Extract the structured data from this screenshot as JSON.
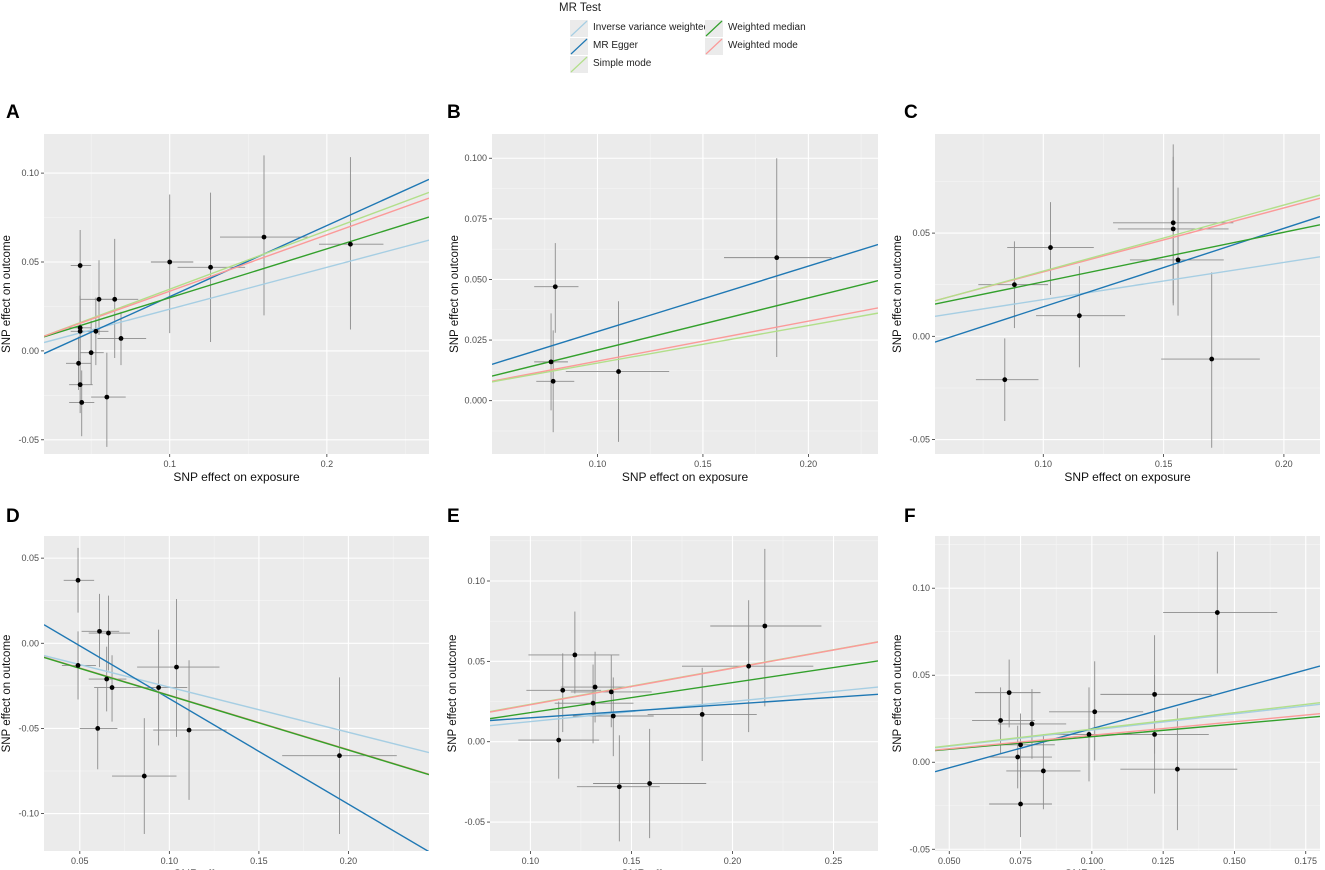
{
  "legend": {
    "title": "MR Test",
    "items": [
      {
        "name": "Inverse variance weighted",
        "color": "#a6cee3"
      },
      {
        "name": "Weighted median",
        "color": "#33a02c"
      },
      {
        "name": "MR Egger",
        "color": "#1f78b4"
      },
      {
        "name": "Weighted mode",
        "color": "#fb9a99"
      },
      {
        "name": "Simple mode",
        "color": "#b2df8a"
      }
    ]
  },
  "chart_data": [
    {
      "id": "A",
      "label": "A",
      "type": "scatter",
      "xlabel": "SNP effect on exposure",
      "ylabel": "SNP effect on outcome",
      "xlim": [
        0.02,
        0.265
      ],
      "ylim": [
        -0.058,
        0.122
      ],
      "xticks": [
        0.1,
        0.2
      ],
      "xticklabels": [
        "0.1",
        "0.2"
      ],
      "yticks": [
        -0.05,
        0.0,
        0.05,
        0.1
      ],
      "yticklabels": [
        "-0.05",
        "0.00",
        "0.05",
        "0.10"
      ],
      "points": [
        {
          "x": 0.043,
          "y": 0.048,
          "xlo": 0.037,
          "xhi": 0.05,
          "ylo": 0.028,
          "yhi": 0.068
        },
        {
          "x": 0.043,
          "y": 0.013,
          "xlo": 0.036,
          "xhi": 0.05,
          "ylo": -0.005,
          "yhi": 0.031
        },
        {
          "x": 0.043,
          "y": 0.011,
          "xlo": 0.037,
          "xhi": 0.049,
          "ylo": -0.006,
          "yhi": 0.028
        },
        {
          "x": 0.042,
          "y": -0.007,
          "xlo": 0.034,
          "xhi": 0.05,
          "ylo": -0.022,
          "yhi": 0.008
        },
        {
          "x": 0.043,
          "y": -0.019,
          "xlo": 0.036,
          "xhi": 0.051,
          "ylo": -0.035,
          "yhi": -0.004
        },
        {
          "x": 0.044,
          "y": -0.029,
          "xlo": 0.036,
          "xhi": 0.052,
          "ylo": -0.048,
          "yhi": -0.011
        },
        {
          "x": 0.05,
          "y": -0.001,
          "xlo": 0.043,
          "xhi": 0.058,
          "ylo": -0.019,
          "yhi": 0.017
        },
        {
          "x": 0.053,
          "y": 0.011,
          "xlo": 0.045,
          "xhi": 0.061,
          "ylo": -0.008,
          "yhi": 0.03
        },
        {
          "x": 0.055,
          "y": 0.029,
          "xlo": 0.043,
          "xhi": 0.066,
          "ylo": 0.009,
          "yhi": 0.051
        },
        {
          "x": 0.06,
          "y": -0.026,
          "xlo": 0.05,
          "xhi": 0.072,
          "ylo": -0.054,
          "yhi": -0.001
        },
        {
          "x": 0.065,
          "y": 0.029,
          "xlo": 0.052,
          "xhi": 0.08,
          "ylo": -0.004,
          "yhi": 0.063
        },
        {
          "x": 0.069,
          "y": 0.007,
          "xlo": 0.054,
          "xhi": 0.085,
          "ylo": -0.008,
          "yhi": 0.022
        },
        {
          "x": 0.1,
          "y": 0.05,
          "xlo": 0.088,
          "xhi": 0.115,
          "ylo": 0.01,
          "yhi": 0.088
        },
        {
          "x": 0.126,
          "y": 0.047,
          "xlo": 0.105,
          "xhi": 0.148,
          "ylo": 0.005,
          "yhi": 0.089
        },
        {
          "x": 0.16,
          "y": 0.064,
          "xlo": 0.132,
          "xhi": 0.188,
          "ylo": 0.02,
          "yhi": 0.11
        },
        {
          "x": 0.215,
          "y": 0.06,
          "xlo": 0.195,
          "xhi": 0.236,
          "ylo": 0.012,
          "yhi": 0.109
        }
      ],
      "lines": [
        {
          "method": "Inverse variance weighted",
          "slope": 0.235,
          "intercept": 0.0
        },
        {
          "method": "MR Egger",
          "slope": 0.4,
          "intercept": -0.0095
        },
        {
          "method": "Simple mode",
          "slope": 0.33,
          "intercept": 0.0017
        },
        {
          "method": "Weighted median",
          "slope": 0.275,
          "intercept": 0.0024
        },
        {
          "method": "Weighted mode",
          "slope": 0.317,
          "intercept": 0.0019
        }
      ]
    },
    {
      "id": "B",
      "label": "B",
      "type": "scatter",
      "xlabel": "SNP effect on exposure",
      "ylabel": "SNP effect on outcome",
      "xlim": [
        0.05,
        0.233
      ],
      "ylim": [
        -0.022,
        0.11
      ],
      "xticks": [
        0.1,
        0.15,
        0.2
      ],
      "xticklabels": [
        "0.10",
        "0.15",
        "0.20"
      ],
      "yticks": [
        0.0,
        0.025,
        0.05,
        0.075,
        0.1
      ],
      "yticklabels": [
        "0.000",
        "0.025",
        "0.050",
        "0.075",
        "0.100"
      ],
      "points": [
        {
          "x": 0.08,
          "y": 0.047,
          "xlo": 0.07,
          "xhi": 0.091,
          "ylo": 0.028,
          "yhi": 0.065
        },
        {
          "x": 0.078,
          "y": 0.016,
          "xlo": 0.07,
          "xhi": 0.086,
          "ylo": -0.004,
          "yhi": 0.036
        },
        {
          "x": 0.079,
          "y": 0.008,
          "xlo": 0.071,
          "xhi": 0.089,
          "ylo": -0.013,
          "yhi": 0.029
        },
        {
          "x": 0.11,
          "y": 0.012,
          "xlo": 0.085,
          "xhi": 0.134,
          "ylo": -0.017,
          "yhi": 0.041
        },
        {
          "x": 0.185,
          "y": 0.059,
          "xlo": 0.16,
          "xhi": 0.211,
          "ylo": 0.018,
          "yhi": 0.1
        }
      ],
      "lines": [
        {
          "method": "MR Egger",
          "slope": 0.27,
          "intercept": 0.0015
        },
        {
          "method": "Weighted median",
          "slope": 0.215,
          "intercept": -0.0006
        },
        {
          "method": "Weighted mode",
          "slope": 0.165,
          "intercept": -0.0002
        },
        {
          "method": "Simple mode",
          "slope": 0.155,
          "intercept": 0.0
        }
      ]
    },
    {
      "id": "C",
      "label": "C",
      "type": "scatter",
      "xlabel": "SNP effect on exposure",
      "ylabel": "SNP effect on outcome",
      "xlim": [
        0.055,
        0.215
      ],
      "ylim": [
        -0.057,
        0.098
      ],
      "xticks": [
        0.1,
        0.15,
        0.2
      ],
      "xticklabels": [
        "0.10",
        "0.15",
        "0.20"
      ],
      "yticks": [
        -0.05,
        0.0,
        0.05
      ],
      "yticklabels": [
        "-0.05",
        "0.00",
        "0.05"
      ],
      "points": [
        {
          "x": 0.084,
          "y": -0.021,
          "xlo": 0.072,
          "xhi": 0.098,
          "ylo": -0.041,
          "yhi": -0.001
        },
        {
          "x": 0.088,
          "y": 0.025,
          "xlo": 0.073,
          "xhi": 0.102,
          "ylo": 0.004,
          "yhi": 0.046
        },
        {
          "x": 0.103,
          "y": 0.043,
          "xlo": 0.085,
          "xhi": 0.121,
          "ylo": 0.02,
          "yhi": 0.065
        },
        {
          "x": 0.115,
          "y": 0.01,
          "xlo": 0.097,
          "xhi": 0.134,
          "ylo": -0.015,
          "yhi": 0.034
        },
        {
          "x": 0.154,
          "y": 0.055,
          "xlo": 0.129,
          "xhi": 0.179,
          "ylo": 0.015,
          "yhi": 0.093
        },
        {
          "x": 0.154,
          "y": 0.052,
          "xlo": 0.131,
          "xhi": 0.177,
          "ylo": 0.016,
          "yhi": 0.087
        },
        {
          "x": 0.156,
          "y": 0.037,
          "xlo": 0.136,
          "xhi": 0.175,
          "ylo": 0.01,
          "yhi": 0.072
        },
        {
          "x": 0.17,
          "y": -0.011,
          "xlo": 0.149,
          "xhi": 0.19,
          "ylo": -0.054,
          "yhi": 0.031
        }
      ],
      "lines": [
        {
          "method": "Inverse variance weighted",
          "slope": 0.18,
          "intercept": -0.0002
        },
        {
          "method": "MR Egger",
          "slope": 0.38,
          "intercept": -0.0237
        },
        {
          "method": "Weighted median",
          "slope": 0.24,
          "intercept": 0.0024
        },
        {
          "method": "Weighted mode",
          "slope": 0.31,
          "intercept": 0.0002
        },
        {
          "method": "Simple mode",
          "slope": 0.32,
          "intercept": -0.0004
        }
      ]
    },
    {
      "id": "D",
      "label": "D",
      "type": "scatter",
      "xlabel": "SNP effect on exposure",
      "ylabel": "SNP effect on outcome",
      "xlim": [
        0.03,
        0.245
      ],
      "ylim": [
        -0.122,
        0.063
      ],
      "xticks": [
        0.05,
        0.1,
        0.15,
        0.2
      ],
      "xticklabels": [
        "0.05",
        "0.10",
        "0.15",
        "0.20"
      ],
      "yticks": [
        -0.1,
        -0.05,
        0.0,
        0.05
      ],
      "yticklabels": [
        "-0.10",
        "-0.05",
        "0.00",
        "0.05"
      ],
      "points": [
        {
          "x": 0.049,
          "y": 0.037,
          "xlo": 0.041,
          "xhi": 0.058,
          "ylo": 0.018,
          "yhi": 0.056
        },
        {
          "x": 0.049,
          "y": -0.013,
          "xlo": 0.04,
          "xhi": 0.059,
          "ylo": -0.033,
          "yhi": 0.007
        },
        {
          "x": 0.061,
          "y": 0.007,
          "xlo": 0.051,
          "xhi": 0.072,
          "ylo": -0.014,
          "yhi": 0.029
        },
        {
          "x": 0.066,
          "y": 0.006,
          "xlo": 0.055,
          "xhi": 0.078,
          "ylo": -0.016,
          "yhi": 0.028
        },
        {
          "x": 0.065,
          "y": -0.021,
          "xlo": 0.055,
          "xhi": 0.076,
          "ylo": -0.04,
          "yhi": -0.002
        },
        {
          "x": 0.068,
          "y": -0.026,
          "xlo": 0.058,
          "xhi": 0.079,
          "ylo": -0.046,
          "yhi": -0.007
        },
        {
          "x": 0.06,
          "y": -0.05,
          "xlo": 0.05,
          "xhi": 0.071,
          "ylo": -0.074,
          "yhi": -0.026
        },
        {
          "x": 0.086,
          "y": -0.078,
          "xlo": 0.068,
          "xhi": 0.104,
          "ylo": -0.112,
          "yhi": -0.044
        },
        {
          "x": 0.094,
          "y": -0.026,
          "xlo": 0.079,
          "xhi": 0.11,
          "ylo": -0.06,
          "yhi": 0.008
        },
        {
          "x": 0.104,
          "y": -0.014,
          "xlo": 0.082,
          "xhi": 0.128,
          "ylo": -0.055,
          "yhi": 0.026
        },
        {
          "x": 0.111,
          "y": -0.051,
          "xlo": 0.091,
          "xhi": 0.132,
          "ylo": -0.092,
          "yhi": -0.01
        },
        {
          "x": 0.195,
          "y": -0.066,
          "xlo": 0.163,
          "xhi": 0.227,
          "ylo": -0.112,
          "yhi": -0.02
        }
      ],
      "lines": [
        {
          "method": "Inverse variance weighted",
          "slope": -0.265,
          "intercept": 0.0007
        },
        {
          "method": "MR Egger",
          "slope": -0.62,
          "intercept": 0.0295
        },
        {
          "method": "Simple mode",
          "slope": -0.32,
          "intercept": 0.0012
        },
        {
          "method": "Weighted mode",
          "slope": -0.32,
          "intercept": 0.0015
        },
        {
          "method": "Weighted median",
          "slope": -0.32,
          "intercept": 0.0013
        }
      ]
    },
    {
      "id": "E",
      "label": "E",
      "type": "scatter",
      "xlabel": "SNP effect on exposure",
      "ylabel": "SNP effect on outcome",
      "xlim": [
        0.08,
        0.272
      ],
      "ylim": [
        -0.068,
        0.128
      ],
      "xticks": [
        0.1,
        0.15,
        0.2,
        0.25
      ],
      "xticklabels": [
        "0.10",
        "0.15",
        "0.20",
        "0.25"
      ],
      "yticks": [
        -0.05,
        0.0,
        0.05,
        0.1
      ],
      "yticklabels": [
        "-0.05",
        "0.00",
        "0.05",
        "0.10"
      ],
      "points": [
        {
          "x": 0.114,
          "y": 0.001,
          "xlo": 0.094,
          "xhi": 0.134,
          "ylo": -0.023,
          "yhi": 0.025
        },
        {
          "x": 0.116,
          "y": 0.032,
          "xlo": 0.098,
          "xhi": 0.135,
          "ylo": 0.006,
          "yhi": 0.055
        },
        {
          "x": 0.122,
          "y": 0.054,
          "xlo": 0.099,
          "xhi": 0.144,
          "ylo": 0.03,
          "yhi": 0.081
        },
        {
          "x": 0.131,
          "y": 0.024,
          "xlo": 0.112,
          "xhi": 0.151,
          "ylo": -0.001,
          "yhi": 0.048
        },
        {
          "x": 0.132,
          "y": 0.034,
          "xlo": 0.115,
          "xhi": 0.15,
          "ylo": 0.012,
          "yhi": 0.056
        },
        {
          "x": 0.14,
          "y": 0.031,
          "xlo": 0.12,
          "xhi": 0.16,
          "ylo": 0.009,
          "yhi": 0.054
        },
        {
          "x": 0.141,
          "y": 0.016,
          "xlo": 0.121,
          "xhi": 0.161,
          "ylo": -0.009,
          "yhi": 0.04
        },
        {
          "x": 0.144,
          "y": -0.028,
          "xlo": 0.123,
          "xhi": 0.164,
          "ylo": -0.062,
          "yhi": 0.004
        },
        {
          "x": 0.159,
          "y": -0.026,
          "xlo": 0.131,
          "xhi": 0.187,
          "ylo": -0.06,
          "yhi": 0.008
        },
        {
          "x": 0.185,
          "y": 0.017,
          "xlo": 0.158,
          "xhi": 0.212,
          "ylo": -0.012,
          "yhi": 0.046
        },
        {
          "x": 0.208,
          "y": 0.047,
          "xlo": 0.175,
          "xhi": 0.24,
          "ylo": 0.006,
          "yhi": 0.088
        },
        {
          "x": 0.216,
          "y": 0.072,
          "xlo": 0.189,
          "xhi": 0.244,
          "ylo": 0.022,
          "yhi": 0.12
        }
      ],
      "lines": [
        {
          "method": "Inverse variance weighted",
          "slope": 0.125,
          "intercept": 0.0
        },
        {
          "method": "MR Egger",
          "slope": 0.085,
          "intercept": 0.0064
        },
        {
          "method": "Weighted median",
          "slope": 0.187,
          "intercept": -0.0006
        },
        {
          "method": "Simple mode",
          "slope": 0.226,
          "intercept": 0.0007
        },
        {
          "method": "Weighted mode",
          "slope": 0.227,
          "intercept": 0.0003
        }
      ]
    },
    {
      "id": "F",
      "label": "F",
      "type": "scatter",
      "xlabel": "SNP effect on exposure",
      "ylabel": "SNP effect on outcome",
      "xlim": [
        0.045,
        0.18
      ],
      "ylim": [
        -0.051,
        0.13
      ],
      "xticks": [
        0.05,
        0.075,
        0.1,
        0.125,
        0.15,
        0.175
      ],
      "xticklabels": [
        "0.050",
        "0.075",
        "0.100",
        "0.125",
        "0.150",
        "0.175"
      ],
      "yticks": [
        -0.05,
        0.0,
        0.05,
        0.1
      ],
      "yticklabels": [
        "-0.05",
        "0.00",
        "0.05",
        "0.10"
      ],
      "points": [
        {
          "x": 0.068,
          "y": 0.024,
          "xlo": 0.058,
          "xhi": 0.08,
          "ylo": 0.005,
          "yhi": 0.043
        },
        {
          "x": 0.071,
          "y": 0.04,
          "xlo": 0.059,
          "xhi": 0.082,
          "ylo": 0.02,
          "yhi": 0.059
        },
        {
          "x": 0.074,
          "y": 0.003,
          "xlo": 0.064,
          "xhi": 0.086,
          "ylo": -0.015,
          "yhi": 0.021
        },
        {
          "x": 0.075,
          "y": 0.01,
          "xlo": 0.065,
          "xhi": 0.087,
          "ylo": -0.009,
          "yhi": 0.028
        },
        {
          "x": 0.075,
          "y": -0.024,
          "xlo": 0.064,
          "xhi": 0.086,
          "ylo": -0.043,
          "yhi": -0.005
        },
        {
          "x": 0.079,
          "y": 0.022,
          "xlo": 0.067,
          "xhi": 0.091,
          "ylo": 0.002,
          "yhi": 0.042
        },
        {
          "x": 0.083,
          "y": -0.005,
          "xlo": 0.07,
          "xhi": 0.096,
          "ylo": -0.027,
          "yhi": 0.016
        },
        {
          "x": 0.099,
          "y": 0.016,
          "xlo": 0.083,
          "xhi": 0.114,
          "ylo": -0.011,
          "yhi": 0.043
        },
        {
          "x": 0.101,
          "y": 0.029,
          "xlo": 0.085,
          "xhi": 0.118,
          "ylo": 0.001,
          "yhi": 0.058
        },
        {
          "x": 0.122,
          "y": 0.039,
          "xlo": 0.103,
          "xhi": 0.142,
          "ylo": 0.005,
          "yhi": 0.073
        },
        {
          "x": 0.122,
          "y": 0.016,
          "xlo": 0.103,
          "xhi": 0.141,
          "ylo": -0.018,
          "yhi": 0.05
        },
        {
          "x": 0.13,
          "y": -0.004,
          "xlo": 0.11,
          "xhi": 0.151,
          "ylo": -0.039,
          "yhi": 0.031
        },
        {
          "x": 0.144,
          "y": 0.086,
          "xlo": 0.125,
          "xhi": 0.165,
          "ylo": 0.051,
          "yhi": 0.121
        }
      ],
      "lines": [
        {
          "method": "Inverse variance weighted",
          "slope": 0.185,
          "intercept": 0.0
        },
        {
          "method": "MR Egger",
          "slope": 0.45,
          "intercept": -0.0257
        },
        {
          "method": "Simple mode",
          "slope": 0.19,
          "intercept": 0.0
        },
        {
          "method": "Weighted median",
          "slope": 0.145,
          "intercept": 0.0002
        },
        {
          "method": "Weighted mode",
          "slope": 0.155,
          "intercept": 0.0
        }
      ]
    }
  ]
}
